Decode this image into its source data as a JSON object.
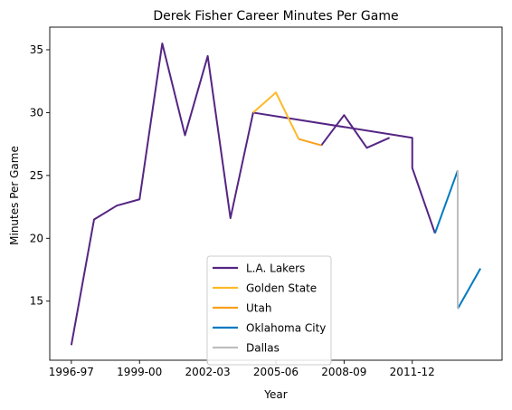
{
  "chart_data": {
    "type": "line",
    "title": "Derek Fisher Career Minutes Per Game",
    "xlabel": "Year",
    "ylabel": "Minutes Per Game",
    "ylim": [
      10.3,
      36.8
    ],
    "x_tick_labels": [
      "1996-97",
      "1999-00",
      "2002-03",
      "2005-06",
      "2008-09",
      "2011-12"
    ],
    "y_ticks": [
      15,
      20,
      25,
      30,
      35
    ],
    "grid": false,
    "legend_position": "lower center",
    "series": [
      {
        "name": "L.A. Lakers",
        "color": "#552583",
        "x": [
          1996,
          1997,
          1998,
          1999,
          2000,
          2001,
          2002,
          2003,
          2004,
          2011,
          2011,
          2012
        ],
        "y": [
          11.5,
          21.5,
          22.6,
          23.1,
          35.5,
          28.2,
          34.5,
          21.6,
          30.0,
          28.0,
          25.6,
          20.4
        ]
      },
      {
        "name": "L.A. Lakers",
        "color": "#552583",
        "x": [
          2007,
          2008,
          2009,
          2010
        ],
        "y": [
          27.4,
          29.8,
          27.2,
          28.0
        ]
      },
      {
        "name": "Golden State",
        "color": "#FDB927",
        "x": [
          2004,
          2005,
          2006
        ],
        "y": [
          30.0,
          31.6,
          27.9
        ]
      },
      {
        "name": "Utah",
        "color": "#F9A01B",
        "x": [
          2006,
          2007
        ],
        "y": [
          27.9,
          27.4
        ]
      },
      {
        "name": "Oklahoma City",
        "color": "#007AC1",
        "x": [
          2012,
          2013
        ],
        "y": [
          20.4,
          25.4
        ]
      },
      {
        "name": "Oklahoma City",
        "color": "#007AC1",
        "x": [
          2013,
          2014
        ],
        "y": [
          14.4,
          17.6
        ]
      },
      {
        "name": "Dallas",
        "color": "#BEBEBE",
        "x": [
          2013,
          2013
        ],
        "y": [
          25.4,
          14.4
        ]
      }
    ],
    "legend": [
      {
        "name": "L.A. Lakers",
        "color": "#552583"
      },
      {
        "name": "Golden State",
        "color": "#FDB927"
      },
      {
        "name": "Utah",
        "color": "#F9A01B"
      },
      {
        "name": "Oklahoma City",
        "color": "#007AC1"
      },
      {
        "name": "Dallas",
        "color": "#BEBEBE"
      }
    ]
  }
}
